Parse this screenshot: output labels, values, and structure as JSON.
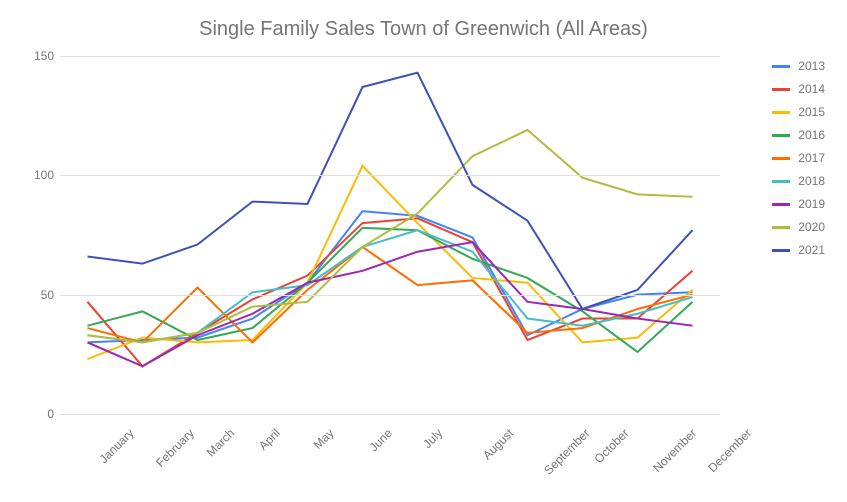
{
  "title": "Single Family Sales Town of Greenwich (All Areas)",
  "chart": {
    "type": "line",
    "title_fontsize": 20,
    "title_color": "#757575",
    "label_fontsize": 12,
    "label_color": "#757575",
    "background_color": "#ffffff",
    "grid_color": "#e0e0e0",
    "line_width": 2,
    "ylim": [
      0,
      150
    ],
    "ytick_step": 50,
    "yticks": [
      0,
      50,
      100,
      150
    ],
    "x_categories": [
      "January",
      "February",
      "March",
      "April",
      "May",
      "June",
      "July",
      "August",
      "September",
      "October",
      "November",
      "December"
    ],
    "x_label_rotation_deg": -45,
    "series": [
      {
        "name": "2013",
        "color": "#4285f4",
        "values": [
          30,
          31,
          32,
          40,
          55,
          85,
          83,
          74,
          33,
          44,
          50,
          51
        ]
      },
      {
        "name": "2014",
        "color": "#ea4335",
        "values": [
          47,
          20,
          34,
          48,
          58,
          80,
          82,
          72,
          31,
          40,
          40,
          60
        ]
      },
      {
        "name": "2015",
        "color": "#fbbc04",
        "values": [
          23,
          32,
          30,
          31,
          55,
          104,
          80,
          57,
          55,
          30,
          32,
          52
        ]
      },
      {
        "name": "2016",
        "color": "#34a853",
        "values": [
          37,
          43,
          31,
          36,
          55,
          78,
          77,
          65,
          57,
          43,
          26,
          47
        ]
      },
      {
        "name": "2017",
        "color": "#ff6d01",
        "values": [
          36,
          30,
          53,
          30,
          52,
          70,
          54,
          56,
          34,
          36,
          44,
          50
        ]
      },
      {
        "name": "2018",
        "color": "#46bdc6",
        "values": [
          33,
          30,
          34,
          51,
          54,
          70,
          77,
          68,
          40,
          37,
          42,
          49
        ]
      },
      {
        "name": "2019",
        "color": "#9c27b0",
        "values": [
          30,
          20,
          33,
          42,
          55,
          60,
          68,
          72,
          47,
          44,
          40,
          37
        ]
      },
      {
        "name": "2020",
        "color": "#b0bc3e",
        "values": [
          33,
          30,
          34,
          45,
          47,
          70,
          84,
          108,
          119,
          99,
          92,
          91
        ]
      },
      {
        "name": "2021",
        "color": "#3f51b5",
        "values": [
          66,
          63,
          71,
          89,
          88,
          137,
          143,
          96,
          81,
          44,
          52,
          77
        ]
      }
    ],
    "legend_position": "right"
  }
}
